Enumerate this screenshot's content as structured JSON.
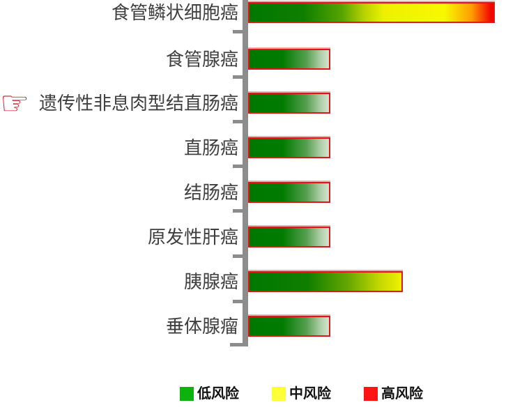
{
  "chart_data": {
    "type": "bar",
    "orientation": "horizontal",
    "title": "",
    "xlabel": "",
    "ylabel": "",
    "value_axis_labels_visible": false,
    "categories": [
      "食管鳞状细胞癌",
      "食管腺癌",
      "遗传性非息肉型结直肠癌",
      "直肠癌",
      "结肠癌",
      "原发性肝癌",
      "胰腺癌",
      "垂体腺瘤"
    ],
    "rows": [
      {
        "label": "食管鳞状细胞癌",
        "value_pct": 100,
        "risk": "high"
      },
      {
        "label": "食管腺癌",
        "value_pct": 33.3,
        "risk": "low"
      },
      {
        "label": "遗传性非息肉型结直肠癌",
        "value_pct": 33.3,
        "risk": "low",
        "pointer": true
      },
      {
        "label": "直肠癌",
        "value_pct": 33.3,
        "risk": "low"
      },
      {
        "label": "结肠癌",
        "value_pct": 33.3,
        "risk": "low"
      },
      {
        "label": "原发性肝癌",
        "value_pct": 33.3,
        "risk": "low"
      },
      {
        "label": "胰腺癌",
        "value_pct": 62.7,
        "risk": "medium"
      },
      {
        "label": "垂体腺瘤",
        "value_pct": 33.3,
        "risk": "low"
      }
    ],
    "highlighted_category": "遗传性非息肉型结直肠癌",
    "legend": [
      {
        "label": "低风险",
        "risk": "low",
        "color": "#0db30d"
      },
      {
        "label": "中风险",
        "risk": "medium",
        "color": "#ffff35"
      },
      {
        "label": "高风险",
        "risk": "high",
        "color": "#ff1414"
      }
    ],
    "legend_position": "bottom"
  },
  "icons": {
    "pointer_hand": "☞"
  },
  "colors": {
    "bar_border": "#e21414",
    "bar_green_start": "#007800",
    "bar_low_end": "#d4e4cf",
    "bar_medium_end": "#eef000",
    "bar_high_end": "#f20600",
    "axis_gray": "#8c8c8c",
    "label_text": "#3f3f3f",
    "pointer_red": "#cd1220"
  }
}
